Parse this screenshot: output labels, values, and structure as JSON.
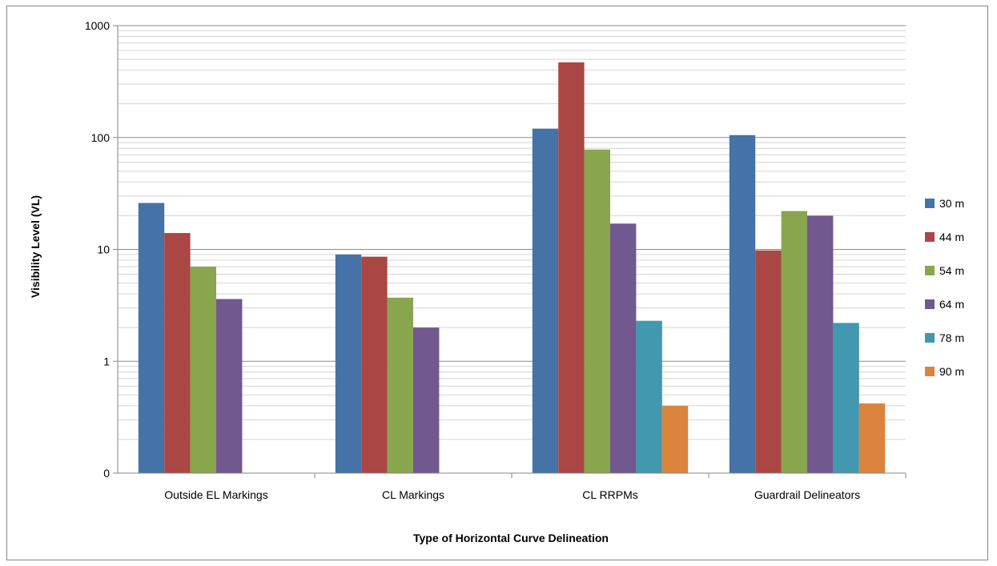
{
  "chart_data": {
    "type": "bar",
    "title": "",
    "xlabel": "Type of Horizontal Curve Delineation",
    "ylabel": "Visibility Level (VL)",
    "y_scale": "log",
    "ylim": [
      0.1,
      1000
    ],
    "y_ticks": [
      {
        "value": 0.1,
        "label": "0"
      },
      {
        "value": 1,
        "label": "1"
      },
      {
        "value": 10,
        "label": "10"
      },
      {
        "value": 100,
        "label": "100"
      },
      {
        "value": 1000,
        "label": "1000"
      }
    ],
    "grid": true,
    "legend_position": "right",
    "categories": [
      "Outside EL Markings",
      "CL Markings",
      "CL RRPMs",
      "Guardrail Delineators"
    ],
    "series": [
      {
        "name": "30 m",
        "color": "#4572A7",
        "values": [
          26,
          9,
          120,
          105
        ]
      },
      {
        "name": "44 m",
        "color": "#AA4643",
        "values": [
          14,
          8.6,
          470,
          9.8
        ]
      },
      {
        "name": "54 m",
        "color": "#89A54E",
        "values": [
          7,
          3.7,
          78,
          22
        ]
      },
      {
        "name": "64 m",
        "color": "#71588F",
        "values": [
          3.6,
          2,
          17,
          20
        ]
      },
      {
        "name": "78 m",
        "color": "#4198AF",
        "values": [
          null,
          null,
          2.3,
          2.2
        ]
      },
      {
        "name": "90 m",
        "color": "#DB843D",
        "values": [
          null,
          null,
          0.4,
          0.42
        ]
      }
    ]
  }
}
